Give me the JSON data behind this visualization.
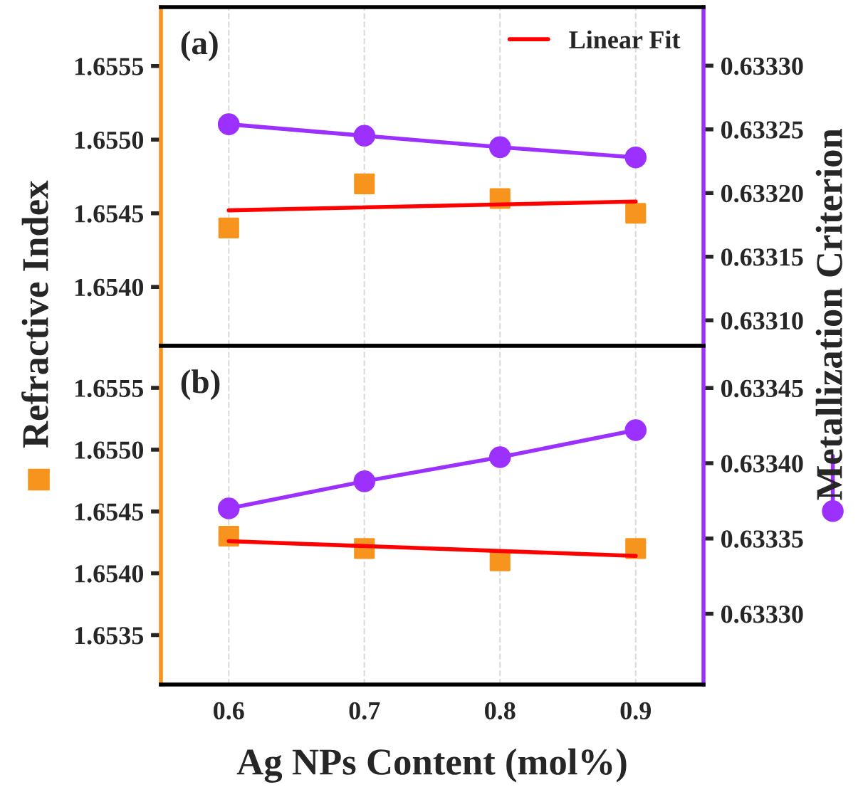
{
  "chart_data": [
    {
      "type": "scatter",
      "annotations": [
        "(a)"
      ],
      "ylabel": "Refractive Index",
      "y2label": "Metallization Criterion",
      "xlim": [
        0.55,
        0.95
      ],
      "xticks": [
        0.6,
        0.7,
        0.8,
        0.9
      ],
      "ylim": [
        1.6536,
        1.6559
      ],
      "yticks": [
        {
          "value": 1.654,
          "label": "1.6540"
        },
        {
          "value": 1.6545,
          "label": "1.6545"
        },
        {
          "value": 1.655,
          "label": "1.6550"
        },
        {
          "value": 1.6555,
          "label": "1.6555"
        }
      ],
      "y2lim": [
        0.63308,
        0.633346
      ],
      "y2ticks": [
        {
          "value": 0.6331,
          "label": "0.63310"
        },
        {
          "value": 0.63315,
          "label": "0.63315"
        },
        {
          "value": 0.6332,
          "label": "0.63320"
        },
        {
          "value": 0.63325,
          "label": "0.63325"
        },
        {
          "value": 0.6333,
          "label": "0.63330"
        }
      ],
      "tick_labels": "y",
      "grid": "x",
      "legend": "top right",
      "series": [
        {
          "marker": "square",
          "color": "#f7941d",
          "x": [
            0.6,
            0.7,
            0.8,
            0.9
          ],
          "values": [
            1.6544,
            1.6547,
            1.6546,
            1.6545
          ]
        },
        {
          "type": "line",
          "name": "Linear Fit",
          "marker": "none",
          "color": "#ff0000",
          "x": [
            0.6,
            0.9
          ],
          "values": [
            1.65452,
            1.65458
          ]
        },
        {
          "type": "line",
          "axis": "y2",
          "marker": "circle",
          "color": "#9b30ff",
          "x": [
            0.6,
            0.7,
            0.8,
            0.9
          ],
          "values": [
            0.633254,
            0.633245,
            0.633236,
            0.633228
          ]
        }
      ]
    },
    {
      "type": "scatter",
      "annotations": [
        "(b)"
      ],
      "xlabel": "Ag NPs Content (mol%)",
      "xlim": [
        0.55,
        0.95
      ],
      "xticks": [
        0.6,
        0.7,
        0.8,
        0.9
      ],
      "ylim": [
        1.6531,
        1.65584
      ],
      "yticks": [
        {
          "value": 1.6535,
          "label": "1.6535"
        },
        {
          "value": 1.654,
          "label": "1.6540"
        },
        {
          "value": 1.6545,
          "label": "1.6545"
        },
        {
          "value": 1.655,
          "label": "1.6550"
        },
        {
          "value": 1.6555,
          "label": "1.6555"
        }
      ],
      "y2lim": [
        0.633253,
        0.633478
      ],
      "y2ticks": [
        {
          "value": 0.6333,
          "label": "0.63330"
        },
        {
          "value": 0.63335,
          "label": "0.63335"
        },
        {
          "value": 0.6334,
          "label": "0.63340"
        },
        {
          "value": 0.63345,
          "label": "0.63345"
        }
      ],
      "grid": "x",
      "series": [
        {
          "marker": "square",
          "color": "#f7941d",
          "x": [
            0.6,
            0.7,
            0.8,
            0.9
          ],
          "values": [
            1.6543,
            1.6542,
            1.6541,
            1.6542
          ]
        },
        {
          "type": "line",
          "marker": "none",
          "color": "#ff0000",
          "x": [
            0.6,
            0.9
          ],
          "values": [
            1.65426,
            1.65414
          ]
        },
        {
          "type": "line",
          "axis": "y2",
          "marker": "circle",
          "color": "#9b30ff",
          "x": [
            0.6,
            0.7,
            0.8,
            0.9
          ],
          "values": [
            0.63337,
            0.633388,
            0.633404,
            0.633422
          ]
        }
      ]
    }
  ]
}
